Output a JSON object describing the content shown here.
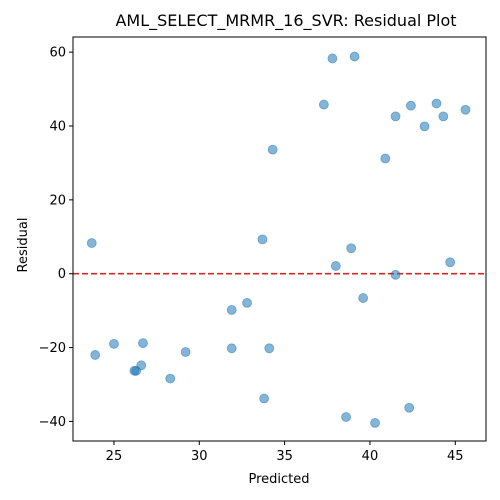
{
  "chart_data": {
    "type": "scatter",
    "title": "AML_SELECT_MRMR_16_SVR: Residual Plot",
    "xlabel": "Predicted",
    "ylabel": "Residual",
    "xlim": [
      22.6,
      46.8
    ],
    "ylim": [
      -45.3,
      64.1
    ],
    "xticks": [
      25,
      30,
      35,
      40,
      45
    ],
    "yticks": [
      -40,
      -20,
      0,
      20,
      40,
      60
    ],
    "reference_line": {
      "y": 0,
      "style": "dashed",
      "color": "#d62728"
    },
    "marker_color": "#1f77b4",
    "marker_alpha": 0.55,
    "grid": false,
    "points": [
      {
        "x": 23.7,
        "y": 8.3
      },
      {
        "x": 23.9,
        "y": -22.0
      },
      {
        "x": 25.0,
        "y": -19.0
      },
      {
        "x": 26.2,
        "y": -26.3
      },
      {
        "x": 26.3,
        "y": -26.3
      },
      {
        "x": 26.6,
        "y": -24.8
      },
      {
        "x": 26.7,
        "y": -18.8
      },
      {
        "x": 28.3,
        "y": -28.4
      },
      {
        "x": 29.2,
        "y": -21.2
      },
      {
        "x": 31.9,
        "y": -9.8
      },
      {
        "x": 31.9,
        "y": -20.2
      },
      {
        "x": 32.8,
        "y": -7.9
      },
      {
        "x": 33.7,
        "y": 9.3
      },
      {
        "x": 33.8,
        "y": -33.8
      },
      {
        "x": 34.1,
        "y": -20.2
      },
      {
        "x": 34.3,
        "y": 33.6
      },
      {
        "x": 37.3,
        "y": 45.8
      },
      {
        "x": 37.8,
        "y": 58.3
      },
      {
        "x": 38.0,
        "y": 2.1
      },
      {
        "x": 38.6,
        "y": -38.8
      },
      {
        "x": 38.9,
        "y": 6.9
      },
      {
        "x": 39.1,
        "y": 58.8
      },
      {
        "x": 39.6,
        "y": -6.6
      },
      {
        "x": 40.3,
        "y": -40.4
      },
      {
        "x": 40.9,
        "y": 31.2
      },
      {
        "x": 41.5,
        "y": 42.6
      },
      {
        "x": 41.5,
        "y": -0.3
      },
      {
        "x": 42.3,
        "y": -36.3
      },
      {
        "x": 42.4,
        "y": 45.5
      },
      {
        "x": 43.2,
        "y": 39.9
      },
      {
        "x": 43.9,
        "y": 46.1
      },
      {
        "x": 44.3,
        "y": 42.6
      },
      {
        "x": 44.7,
        "y": 3.1
      },
      {
        "x": 45.6,
        "y": 44.4
      }
    ]
  }
}
